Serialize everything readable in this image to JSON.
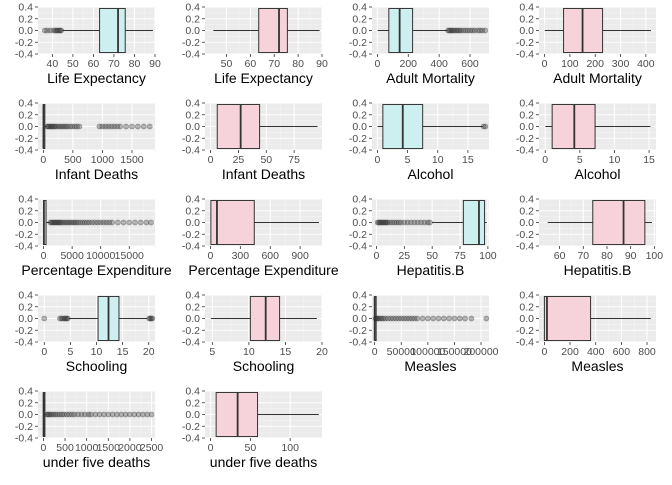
{
  "chart_data": [
    {
      "type": "box",
      "xlabel": "Life Expectancy",
      "xticks": [
        40,
        50,
        60,
        70,
        80,
        90
      ],
      "xlim": [
        33,
        90
      ],
      "box": {
        "q1": 63,
        "median": 72,
        "q3": 75.5,
        "whisker_low": 45,
        "whisker_high": 89
      },
      "outliers": [
        36.3,
        37.5,
        39,
        40.5,
        41.5,
        42,
        42.7,
        43.3,
        43.8,
        44.3
      ],
      "fill_color": "#cdeff0"
    },
    {
      "type": "box",
      "xlabel": "Life Expectancy",
      "xticks": [
        50,
        60,
        70,
        80,
        90
      ],
      "xlim": [
        41,
        90
      ],
      "box": {
        "q1": 63.5,
        "median": 72,
        "q3": 75.5,
        "whisker_low": 44.5,
        "whisker_high": 89
      },
      "outliers": [],
      "fill_color": "#f6d3da"
    },
    {
      "type": "box",
      "xlabel": "Adult Mortality",
      "xticks": [
        0,
        200,
        400,
        600
      ],
      "xlim": [
        -35,
        723
      ],
      "box": {
        "q1": 74,
        "median": 144,
        "q3": 228,
        "whisker_low": 1,
        "whisker_high": 455
      },
      "outliers": [
        458,
        466,
        474,
        482,
        490,
        500,
        510,
        520,
        530,
        540,
        555,
        570,
        585,
        600,
        615,
        630,
        650,
        665,
        680,
        699
      ],
      "fill_color": "#cdeff0"
    },
    {
      "type": "box",
      "xlabel": "Adult Mortality",
      "xticks": [
        0,
        100,
        200,
        300,
        400
      ],
      "xlim": [
        -22,
        440
      ],
      "box": {
        "q1": 75,
        "median": 150,
        "q3": 229,
        "whisker_low": 1,
        "whisker_high": 420
      },
      "outliers": [],
      "fill_color": "#f6d3da"
    },
    {
      "type": "box",
      "xlabel": "Infant Deaths",
      "xticks": [
        0,
        500,
        1000,
        1500
      ],
      "xlim": [
        -90,
        1890
      ],
      "box": {
        "q1": 0,
        "median": 3,
        "q3": 22,
        "whisker_low": 0,
        "whisker_high": 55
      },
      "outliers": [
        65,
        80,
        100,
        120,
        140,
        160,
        180,
        200,
        230,
        260,
        290,
        320,
        350,
        380,
        410,
        450,
        490,
        530,
        570,
        610,
        950,
        1000,
        1050,
        1100,
        1150,
        1200,
        1250,
        1300,
        1400,
        1500,
        1600,
        1700,
        1800
      ],
      "fill_color": "#cdeff0"
    },
    {
      "type": "box",
      "xlabel": "Infant Deaths",
      "xticks": [
        0,
        25,
        50,
        75
      ],
      "xlim": [
        -5,
        100
      ],
      "box": {
        "q1": 6,
        "median": 27,
        "q3": 44,
        "whisker_low": 6,
        "whisker_high": 96
      },
      "outliers": [],
      "fill_color": "#f6d3da"
    },
    {
      "type": "box",
      "xlabel": "Alcohol",
      "xticks": [
        0,
        5,
        10,
        15
      ],
      "xlim": [
        -0.9,
        18.5
      ],
      "box": {
        "q1": 0.9,
        "median": 4.2,
        "q3": 7.5,
        "whisker_low": 0.01,
        "whisker_high": 17.5
      },
      "outliers": [
        17.6,
        17.9
      ],
      "fill_color": "#cdeff0"
    },
    {
      "type": "box",
      "xlabel": "Alcohol",
      "xticks": [
        0,
        5,
        10,
        15
      ],
      "xlim": [
        -0.9,
        16
      ],
      "box": {
        "q1": 1,
        "median": 4.2,
        "q3": 7.2,
        "whisker_low": 0.01,
        "whisker_high": 15.2
      },
      "outliers": [],
      "fill_color": "#f6d3da"
    },
    {
      "type": "box",
      "xlabel": "Percentage Expenditure",
      "xticks": [
        0,
        5000,
        10000,
        15000,
        20000
      ],
      "xlim": [
        -970,
        19500
      ],
      "box": {
        "q1": 5,
        "median": 65,
        "q3": 440,
        "whisker_low": 0,
        "whisker_high": 1100
      },
      "outliers": [
        1200,
        1400,
        1600,
        1800,
        2000,
        2200,
        2400,
        2600,
        2800,
        3000,
        3300,
        3600,
        3900,
        4200,
        4500,
        4800,
        5100,
        5400,
        5700,
        6000,
        6400,
        6800,
        7200,
        7600,
        8000,
        8500,
        9000,
        9500,
        10000,
        10500,
        11000,
        11500,
        12000,
        13000,
        14000,
        15000,
        16000,
        17000,
        18000,
        18800
      ],
      "fill_color": "#cdeff0"
    },
    {
      "type": "box",
      "xlabel": "Percentage Expenditure",
      "xticks": [
        0,
        300,
        600,
        900
      ],
      "xlim": [
        -55,
        1120
      ],
      "box": {
        "q1": 4,
        "median": 65,
        "q3": 440,
        "whisker_low": 4,
        "whisker_high": 1090
      },
      "outliers": [],
      "fill_color": "#f6d3da"
    },
    {
      "type": "box",
      "xlabel": "Hepatitis.B",
      "xticks": [
        0,
        25,
        50,
        75,
        100
      ],
      "xlim": [
        -4,
        101
      ],
      "box": {
        "q1": 78,
        "median": 92,
        "q3": 97,
        "whisker_low": 50,
        "whisker_high": 99
      },
      "outliers": [
        1,
        2,
        3,
        4,
        5,
        6,
        7,
        8,
        9,
        10,
        12,
        14,
        16,
        18,
        20,
        22,
        25,
        28,
        31,
        34,
        37,
        40,
        43,
        46,
        48
      ],
      "fill_color": "#cdeff0"
    },
    {
      "type": "box",
      "xlabel": "Hepatitis.B",
      "xticks": [
        60,
        70,
        80,
        90,
        100
      ],
      "xlim": [
        51.3,
        100.7
      ],
      "box": {
        "q1": 74,
        "median": 87,
        "q3": 96,
        "whisker_low": 55,
        "whisker_high": 99
      },
      "outliers": [],
      "fill_color": "#f6d3da"
    },
    {
      "type": "box",
      "xlabel": "Schooling",
      "xticks": [
        0,
        5,
        10,
        15,
        20
      ],
      "xlim": [
        -1.2,
        21.2
      ],
      "box": {
        "q1": 10.3,
        "median": 12.3,
        "q3": 14.3,
        "whisker_low": 4.7,
        "whisker_high": 19.7
      },
      "outliers": [
        0,
        3.0,
        3.3,
        3.6,
        3.9,
        4.1,
        4.3,
        4.5,
        20.1,
        20.3,
        20.5,
        20.7
      ],
      "fill_color": "#cdeff0"
    },
    {
      "type": "box",
      "xlabel": "Schooling",
      "xticks": [
        5,
        10,
        15,
        20
      ],
      "xlim": [
        4,
        20
      ],
      "box": {
        "q1": 10.2,
        "median": 12.3,
        "q3": 14.2,
        "whisker_low": 4.8,
        "whisker_high": 19.3
      },
      "outliers": [],
      "fill_color": "#f6d3da"
    },
    {
      "type": "box",
      "xlabel": "Measles",
      "xticks": [
        0,
        50000,
        100000,
        150000,
        200000
      ],
      "xlim": [
        -5000,
        215000
      ],
      "box": {
        "q1": 0,
        "median": 20,
        "q3": 360,
        "whisker_low": 0,
        "whisker_high": 900
      },
      "outliers": [
        1500,
        3000,
        5000,
        7000,
        10000,
        13000,
        16000,
        20000,
        25000,
        30000,
        35000,
        40000,
        45000,
        50000,
        55000,
        60000,
        65000,
        70000,
        75000,
        80000,
        90000,
        100000,
        110000,
        120000,
        130000,
        140000,
        150000,
        160000,
        170000,
        182000,
        210000
      ],
      "fill_color": "#cdeff0"
    },
    {
      "type": "box",
      "xlabel": "Measles",
      "xticks": [
        0,
        200,
        400,
        600,
        800
      ],
      "xlim": [
        -42,
        870
      ],
      "box": {
        "q1": 0,
        "median": 20,
        "q3": 360,
        "whisker_low": 0,
        "whisker_high": 830
      },
      "outliers": [],
      "fill_color": "#f6d3da"
    },
    {
      "type": "box",
      "xlabel": "under five deaths",
      "xticks": [
        0,
        500,
        1000,
        1500,
        2000,
        2500
      ],
      "xlim": [
        -125,
        2580
      ],
      "box": {
        "q1": 0,
        "median": 4,
        "q3": 28,
        "whisker_low": 0,
        "whisker_high": 70
      },
      "outliers": [
        80,
        100,
        130,
        160,
        200,
        240,
        280,
        330,
        380,
        430,
        480,
        540,
        600,
        660,
        720,
        800,
        880,
        960,
        1040,
        1100,
        1200,
        1300,
        1400,
        1500,
        1600,
        1700,
        1800,
        1900,
        2000,
        2100,
        2200,
        2300,
        2400,
        2500
      ],
      "fill_color": "#cdeff0"
    },
    {
      "type": "box",
      "xlabel": "under five deaths",
      "xticks": [
        0,
        50,
        100
      ],
      "xlim": [
        -7,
        140
      ],
      "box": {
        "q1": 7,
        "median": 34,
        "q3": 59,
        "whisker_low": 7,
        "whisker_high": 136
      },
      "outliers": [],
      "fill_color": "#f6d3da"
    }
  ],
  "y_axis": {
    "ticks": [
      0.4,
      0.2,
      0.0,
      -0.2,
      -0.4
    ],
    "tick_labels": [
      "0.4",
      "0.2",
      "0.0",
      "-0.2",
      "-0.4"
    ],
    "ylim": [
      -0.4,
      0.4
    ]
  },
  "colors": {
    "panel_bg": "#ebebeb",
    "grid_major": "#ffffff",
    "box_stroke": "#333333",
    "outlier": "#333333",
    "whisker": "#333333",
    "text_dark": "#4d4d4d",
    "title_text": "#000000",
    "raw_fill": "#cdeff0",
    "clean_fill": "#f6d3da"
  }
}
